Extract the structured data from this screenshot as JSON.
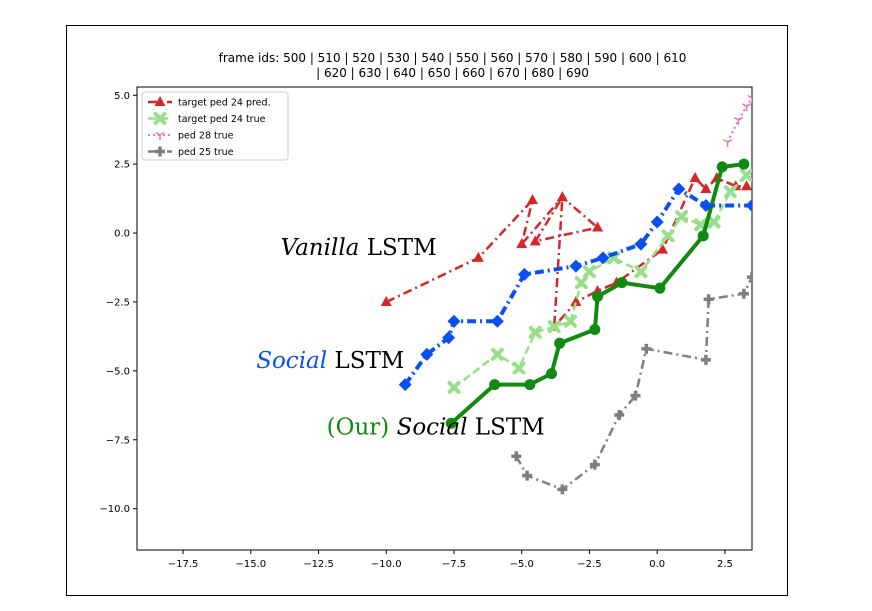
{
  "chart_data": {
    "type": "line",
    "title_lines": [
      "frame ids: 500 | 510 | 520 | 530 | 540 | 550 | 560 | 570 | 580 | 590 | 600 | 610",
      "| 620 | 630 | 640 | 650 | 660 | 670 | 680 | 690"
    ],
    "xlim": [
      -19.2,
      3.5
    ],
    "ylim": [
      -11.5,
      5.3
    ],
    "x_ticks": [
      -17.5,
      -15.0,
      -12.5,
      -10.0,
      -7.5,
      -5.0,
      -2.5,
      0.0,
      2.5
    ],
    "x_tick_labels": [
      "−17.5",
      "−15.0",
      "−12.5",
      "−10.0",
      "−7.5",
      "−5.0",
      "−2.5",
      "0.0",
      "2.5"
    ],
    "y_ticks": [
      5.0,
      2.5,
      0.0,
      -2.5,
      -5.0,
      -7.5,
      -10.0
    ],
    "y_tick_labels": [
      "5.0",
      "2.5",
      "0.0",
      "−2.5",
      "−5.0",
      "−7.5",
      "−10.0"
    ],
    "legend_position": "upper-left",
    "series": [
      {
        "name": "target ped 24 pred.",
        "color": "#d62728",
        "marker": "triangle",
        "dash": "dashdot",
        "points": [
          [
            -10.0,
            -2.5
          ],
          [
            -6.6,
            -0.9
          ],
          [
            -4.6,
            1.2
          ],
          [
            -5.0,
            -0.4
          ],
          [
            -3.5,
            1.3
          ],
          [
            -2.2,
            0.2
          ],
          [
            -4.5,
            -0.3
          ],
          [
            -3.5,
            1.3
          ],
          [
            -3.8,
            -3.4
          ],
          [
            -3.0,
            -2.5
          ],
          [
            -2.2,
            -2.1
          ],
          [
            -1.5,
            -1.8
          ],
          [
            0.2,
            -0.6
          ],
          [
            1.4,
            2.0
          ],
          [
            1.8,
            1.6
          ],
          [
            2.2,
            2.0
          ],
          [
            2.9,
            1.7
          ],
          [
            3.3,
            1.7
          ]
        ]
      },
      {
        "name": "target ped 24 true",
        "color": "#98df8a",
        "marker": "x",
        "dash": "dashed",
        "points": [
          [
            -7.5,
            -5.6
          ],
          [
            -5.9,
            -4.4
          ],
          [
            -5.1,
            -4.9
          ],
          [
            -4.5,
            -3.6
          ],
          [
            -3.8,
            -3.4
          ],
          [
            -3.2,
            -3.2
          ],
          [
            -2.8,
            -1.8
          ],
          [
            -2.5,
            -1.4
          ],
          [
            -1.6,
            -0.9
          ],
          [
            -0.6,
            -1.4
          ],
          [
            0.4,
            -0.1
          ],
          [
            0.9,
            0.6
          ],
          [
            1.6,
            0.3
          ],
          [
            2.1,
            0.4
          ],
          [
            2.7,
            1.5
          ],
          [
            3.3,
            2.1
          ]
        ]
      },
      {
        "name": "ped 28 true",
        "color": "#e377c2",
        "marker": "tri",
        "dash": "dotted",
        "points": [
          [
            2.6,
            3.3
          ],
          [
            3.0,
            4.1
          ],
          [
            3.3,
            4.6
          ],
          [
            3.5,
            4.9
          ]
        ]
      },
      {
        "name": "ped 25 true",
        "color": "#7f7f7f",
        "marker": "plus",
        "dash": "dashdot",
        "points": [
          [
            -5.2,
            -8.1
          ],
          [
            -4.8,
            -8.8
          ],
          [
            -3.5,
            -9.3
          ],
          [
            -2.3,
            -8.4
          ],
          [
            -1.4,
            -6.6
          ],
          [
            -0.8,
            -5.9
          ],
          [
            -0.4,
            -4.2
          ],
          [
            1.8,
            -4.6
          ],
          [
            1.9,
            -2.4
          ],
          [
            3.2,
            -2.2
          ],
          [
            3.5,
            -1.6
          ]
        ]
      },
      {
        "name": "Vanilla LSTM (blue)",
        "color": "#0a4ff0",
        "marker": "diamond",
        "dash": "dashdotbold",
        "points": [
          [
            -9.3,
            -5.5
          ],
          [
            -8.5,
            -4.4
          ],
          [
            -7.7,
            -3.8
          ],
          [
            -7.5,
            -3.2
          ],
          [
            -5.9,
            -3.2
          ],
          [
            -4.9,
            -1.5
          ],
          [
            -3.0,
            -1.2
          ],
          [
            -2.0,
            -0.9
          ],
          [
            -0.6,
            -0.4
          ],
          [
            -0.0,
            0.4
          ],
          [
            0.8,
            1.6
          ],
          [
            1.8,
            1.0
          ],
          [
            3.5,
            1.0
          ]
        ]
      },
      {
        "name": "Our Social LSTM (green)",
        "color": "#118a11",
        "marker": "circle",
        "dash": "solid",
        "points": [
          [
            -7.6,
            -6.9
          ],
          [
            -6.0,
            -5.5
          ],
          [
            -4.7,
            -5.5
          ],
          [
            -3.9,
            -5.1
          ],
          [
            -3.6,
            -4.0
          ],
          [
            -2.3,
            -3.5
          ],
          [
            -2.2,
            -2.3
          ],
          [
            -1.3,
            -1.8
          ],
          [
            0.1,
            -2.0
          ],
          [
            1.7,
            -0.1
          ],
          [
            2.4,
            2.4
          ],
          [
            3.2,
            2.5
          ]
        ]
      }
    ],
    "legend": [
      {
        "label": "target ped 24 pred.",
        "color": "#d62728",
        "marker": "triangle",
        "dash": "dashdot"
      },
      {
        "label": "target ped 24 true",
        "color": "#98df8a",
        "marker": "x",
        "dash": "dashed"
      },
      {
        "label": "ped 28 true",
        "color": "#e377c2",
        "marker": "tri",
        "dash": "dotted"
      },
      {
        "label": "ped 25 true",
        "color": "#7f7f7f",
        "marker": "plus",
        "dash": "dashdot"
      }
    ],
    "annotations": [
      {
        "id": "vanilla",
        "parts": [
          {
            "text": "Vanilla",
            "italic": true,
            "color": "#000000"
          },
          {
            "text": " LSTM",
            "italic": false,
            "color": "#000000"
          }
        ],
        "x": -13.9,
        "y": -0.8
      },
      {
        "id": "social",
        "parts": [
          {
            "text": "Social",
            "italic": true,
            "color": "#0a4ff0"
          },
          {
            "text": " LSTM",
            "italic": false,
            "color": "#000000"
          }
        ],
        "x": -14.8,
        "y": -4.9
      },
      {
        "id": "ours",
        "parts": [
          {
            "text": "(Our) ",
            "italic": false,
            "color": "#118a11"
          },
          {
            "text": "Social",
            "italic": true,
            "color": "#000000"
          },
          {
            "text": " LSTM",
            "italic": false,
            "color": "#000000"
          }
        ],
        "x": -12.2,
        "y": -7.3
      }
    ]
  }
}
